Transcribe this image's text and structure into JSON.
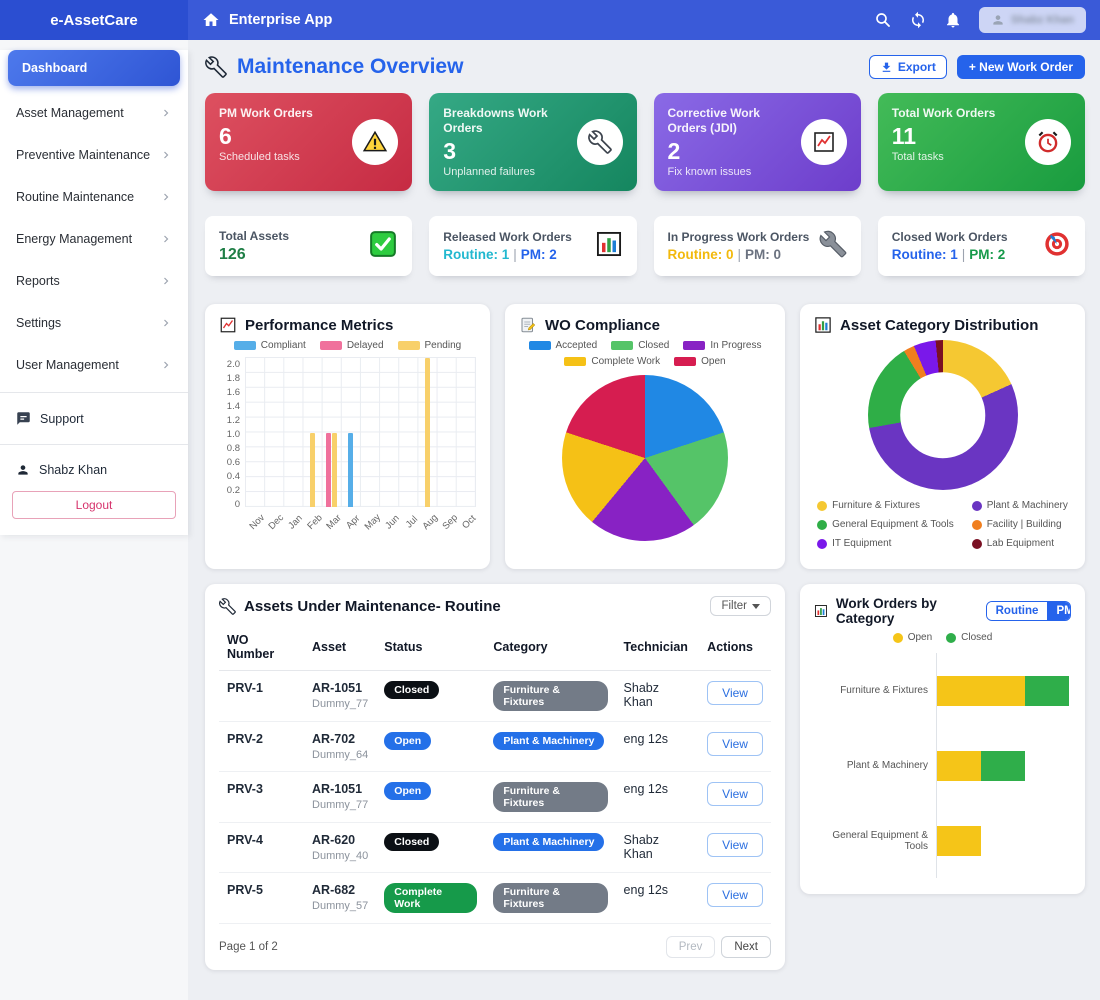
{
  "navbar": {
    "brand": "e-AssetCare",
    "app_title": "Enterprise App",
    "user_label": "Shabz Khan"
  },
  "header": {
    "title": "Maintenance Overview",
    "export_label": "Export",
    "new_work_order_label": "+ New Work Order"
  },
  "sidebar": {
    "items": [
      {
        "label": "Dashboard"
      },
      {
        "label": "Asset Management"
      },
      {
        "label": "Preventive Maintenance"
      },
      {
        "label": "Routine Maintenance"
      },
      {
        "label": "Energy Management"
      },
      {
        "label": "Reports"
      },
      {
        "label": "Settings"
      },
      {
        "label": "User Management"
      }
    ],
    "support_label": "Support",
    "user_name": "Shabz Khan",
    "logout_label": "Logout"
  },
  "kpi_cards": [
    {
      "title": "PM Work Orders",
      "value": "6",
      "subtitle": "Scheduled tasks",
      "icon": "warning-icon"
    },
    {
      "title": "Breakdowns Work Orders",
      "value": "3",
      "subtitle": "Unplanned failures",
      "icon": "wrench-icon"
    },
    {
      "title": "Corrective Work Orders (JDI)",
      "value": "2",
      "subtitle": "Fix known issues",
      "icon": "chart-increasing-icon"
    },
    {
      "title": "Total Work Orders",
      "value": "11",
      "subtitle": "Total tasks",
      "icon": "alarm-clock-icon"
    }
  ],
  "summary_cards": [
    {
      "title": "Total Assets",
      "value": "126",
      "icon": "check-square-icon"
    },
    {
      "title": "Released Work Orders",
      "routine": "Routine: 1",
      "pm": "PM: 2",
      "icon": "bar-chart-icon"
    },
    {
      "title": "In Progress Work Orders",
      "routine": "Routine: 0",
      "pm": "PM: 0",
      "icon": "wrench-icon"
    },
    {
      "title": "Closed Work Orders",
      "routine": "Routine: 1",
      "pm": "PM: 2",
      "icon": "target-icon"
    }
  ],
  "chart_data": [
    {
      "id": "performance_metrics",
      "type": "bar",
      "title": "Performance Metrics",
      "categories": [
        "Nov",
        "Dec",
        "Jan",
        "Feb",
        "Mar",
        "Apr",
        "May",
        "Jun",
        "Jul",
        "Aug",
        "Sep",
        "Oct"
      ],
      "series": [
        {
          "name": "Compliant",
          "color": "#56aee8",
          "values": [
            0,
            0,
            0,
            0,
            0,
            1,
            0,
            0,
            0,
            0,
            0,
            0
          ]
        },
        {
          "name": "Delayed",
          "color": "#f0719c",
          "values": [
            0,
            0,
            0,
            0,
            1,
            0,
            0,
            0,
            0,
            0,
            0,
            0
          ]
        },
        {
          "name": "Pending",
          "color": "#f8d06a",
          "values": [
            0,
            0,
            0,
            1,
            1,
            0,
            0,
            0,
            0,
            2,
            0,
            0
          ]
        }
      ],
      "ylim": [
        0,
        2
      ],
      "ytick_step": 0.2,
      "grid": true,
      "legend_position": "top"
    },
    {
      "id": "wo_compliance",
      "type": "pie",
      "title": "WO Compliance",
      "labels": [
        "Accepted",
        "Closed",
        "In Progress",
        "Complete Work",
        "Open"
      ],
      "values": [
        20,
        20,
        21,
        19,
        20
      ],
      "colors": [
        "#2088e4",
        "#55c468",
        "#8822c4",
        "#f5c116",
        "#d61d50"
      ],
      "legend_position": "top"
    },
    {
      "id": "asset_category_distribution",
      "type": "donut",
      "title": "Asset Category Distribution",
      "labels": [
        "Furniture & Fixtures",
        "Plant & Machinery",
        "General Equipment & Tools",
        "Facility | Building",
        "IT Equipment",
        "Lab Equipment"
      ],
      "values": [
        23,
        68,
        24,
        3,
        6,
        2
      ],
      "colors": [
        "#f5c832",
        "#6a35c2",
        "#2fae47",
        "#f07f1f",
        "#7a18ea",
        "#7a1023"
      ],
      "legend_position": "bottom"
    },
    {
      "id": "work_orders_by_category",
      "type": "stacked_bar_horizontal",
      "title": "Work Orders by Category",
      "categories": [
        "Furniture & Fixtures",
        "Plant & Machinery",
        "General Equipment & Tools"
      ],
      "series": [
        {
          "name": "Open",
          "color": "#f5c518",
          "values": [
            2,
            1,
            1
          ]
        },
        {
          "name": "Closed",
          "color": "#2fae4a",
          "values": [
            1,
            1,
            0
          ]
        }
      ],
      "toggles": [
        {
          "label": "Routine",
          "active": false
        },
        {
          "label": "PM",
          "active": true
        }
      ],
      "legend_position": "top"
    }
  ],
  "table": {
    "title": "Assets Under Maintenance- Routine",
    "filter_label": "Filter",
    "columns": [
      "WO Number",
      "Asset",
      "Status",
      "Category",
      "Technician",
      "Actions"
    ],
    "rows": [
      {
        "wo": "PRV-1",
        "asset": "AR-1051",
        "asset_sub": "Dummy_77",
        "status": "Closed",
        "category": "Furniture & Fixtures",
        "technician": "Shabz Khan",
        "action": "View"
      },
      {
        "wo": "PRV-2",
        "asset": "AR-702",
        "asset_sub": "Dummy_64",
        "status": "Open",
        "category": "Plant & Machinery",
        "technician": "eng 12s",
        "action": "View"
      },
      {
        "wo": "PRV-3",
        "asset": "AR-1051",
        "asset_sub": "Dummy_77",
        "status": "Open",
        "category": "Furniture & Fixtures",
        "technician": "eng 12s",
        "action": "View"
      },
      {
        "wo": "PRV-4",
        "asset": "AR-620",
        "asset_sub": "Dummy_40",
        "status": "Closed",
        "category": "Plant & Machinery",
        "technician": "Shabz Khan",
        "action": "View"
      },
      {
        "wo": "PRV-5",
        "asset": "AR-682",
        "asset_sub": "Dummy_57",
        "status": "Complete Work",
        "category": "Furniture & Fixtures",
        "technician": "eng 12s",
        "action": "View"
      }
    ],
    "status_colors": {
      "Closed": "#0b0f14",
      "Open": "#2470e8",
      "Complete Work": "#169a4a"
    },
    "category_colors": {
      "Furniture & Fixtures": "#737b87",
      "Plant & Machinery": "#2470e8"
    },
    "pagination": {
      "page_text": "Page 1 of 2",
      "prev_label": "Prev",
      "next_label": "Next"
    }
  }
}
